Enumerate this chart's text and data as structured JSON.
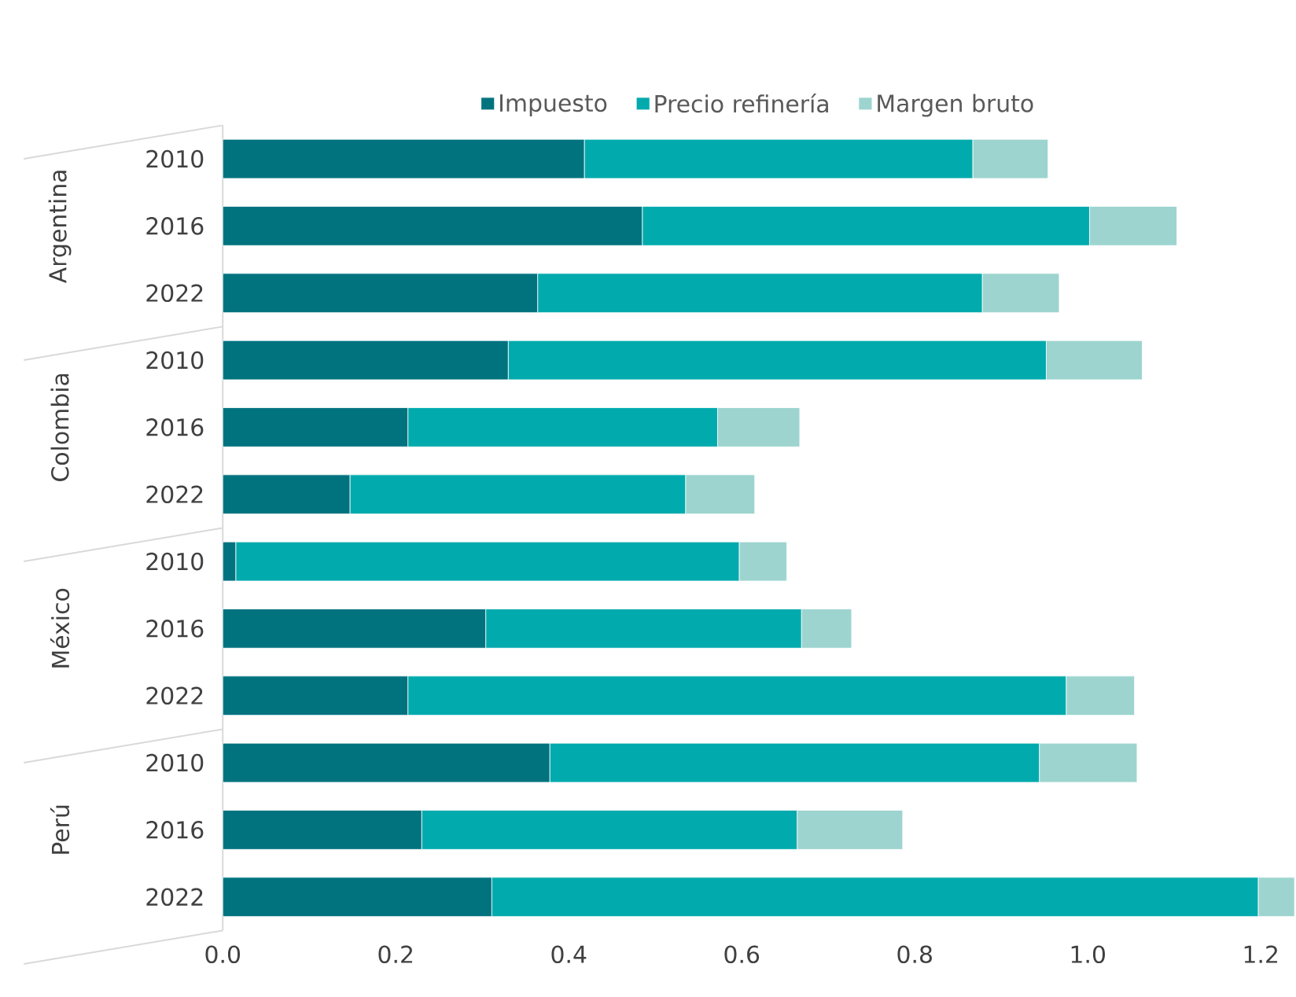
{
  "chart_data": {
    "type": "bar",
    "orientation": "horizontal",
    "stacked": true,
    "categories": [
      "2010",
      "2016",
      "2022",
      "2010",
      "2016",
      "2022",
      "2010",
      "2016",
      "2022",
      "2010",
      "2016",
      "2022"
    ],
    "series": [
      {
        "name": "Impuesto",
        "color": "#00737f",
        "values": [
          0.418,
          0.485,
          0.364,
          0.33,
          0.214,
          0.147,
          0.015,
          0.304,
          0.214,
          0.378,
          0.23,
          0.311
        ]
      },
      {
        "name": "Precio refinería",
        "color": "#00aaad",
        "values": [
          0.449,
          0.517,
          0.514,
          0.622,
          0.358,
          0.388,
          0.582,
          0.365,
          0.761,
          0.566,
          0.434,
          0.886
        ]
      },
      {
        "name": "Margen bruto",
        "color": "#9dd4cf",
        "values": [
          0.087,
          0.101,
          0.089,
          0.111,
          0.095,
          0.08,
          0.055,
          0.058,
          0.079,
          0.113,
          0.122,
          0.042
        ]
      }
    ],
    "annotations": [
      "Argentina",
      "Colombia",
      "México",
      "Perú"
    ],
    "xlim": [
      0,
      1.24
    ],
    "xticks": [
      {
        "value": 0,
        "label": "0.0"
      },
      {
        "value": 0.2,
        "label": "0.2"
      },
      {
        "value": 0.4,
        "label": "0.4"
      },
      {
        "value": 0.6,
        "label": "0.6"
      },
      {
        "value": 0.8,
        "label": "0.8"
      },
      {
        "value": 1.0,
        "label": "1.0"
      },
      {
        "value": 1.2,
        "label": "1.2"
      }
    ],
    "legend": "top",
    "grid": false
  }
}
